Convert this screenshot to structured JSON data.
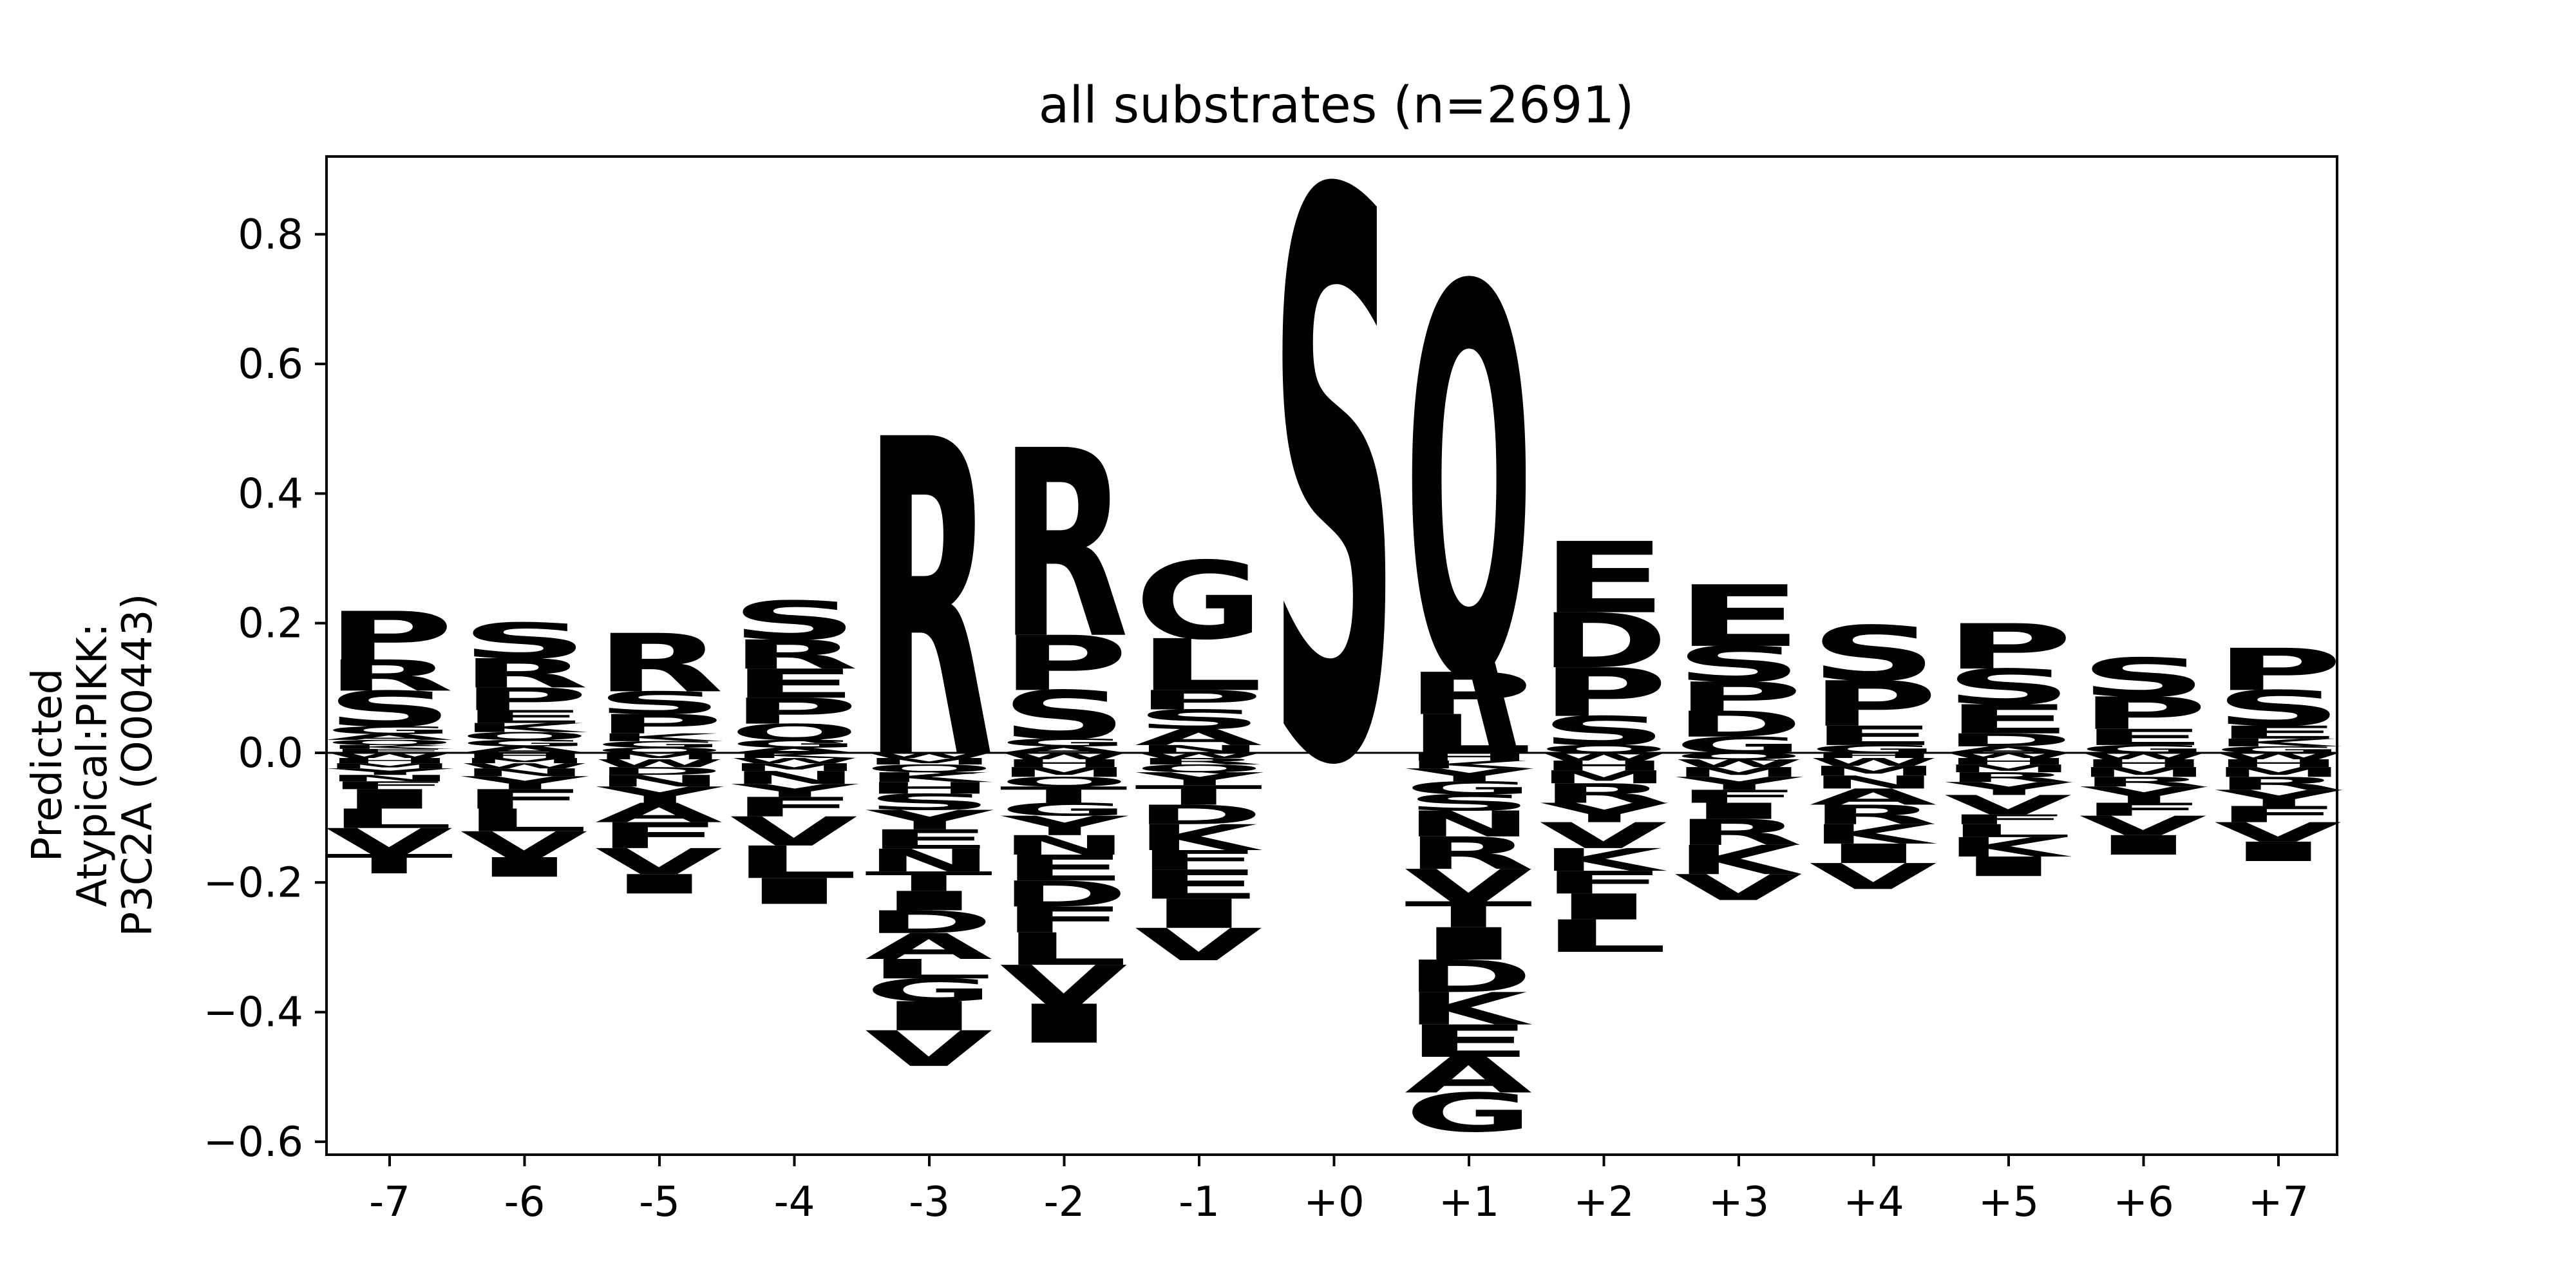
{
  "chart_data": {
    "type": "sequence-logo",
    "title": "all substrates (n=2691)",
    "ylabel_lines": [
      "Predicted",
      "Atypical:PIKK:",
      "P3C2A (O00443)"
    ],
    "ylim": [
      -0.62,
      0.92
    ],
    "yticks": [
      {
        "value": 0.8,
        "label": "0.8"
      },
      {
        "value": 0.6,
        "label": "0.6"
      },
      {
        "value": 0.4,
        "label": "0.4"
      },
      {
        "value": 0.2,
        "label": "0.2"
      },
      {
        "value": 0.0,
        "label": "0.0"
      },
      {
        "value": -0.2,
        "label": "−0.2"
      },
      {
        "value": -0.4,
        "label": "−0.4"
      },
      {
        "value": -0.6,
        "label": "−0.6"
      }
    ],
    "positions": [
      "-7",
      "-6",
      "-5",
      "-4",
      "-3",
      "-2",
      "-1",
      "+0",
      "+1",
      "+2",
      "+3",
      "+4",
      "+5",
      "+6",
      "+7"
    ],
    "colors": {
      "S": "#22d42a",
      "T": "#22d42a",
      "G": "#22d42a",
      "Y": "#22d42a",
      "C": "#22d42a",
      "R": "#0a1fc0",
      "K": "#0a1fc0",
      "H": "#0a1fc0",
      "D": "#d8121c",
      "E": "#d8121c",
      "Q": "#d61fbf",
      "N": "#d61fbf",
      "P": "#000000",
      "L": "#000000",
      "A": "#000000",
      "V": "#000000",
      "I": "#000000",
      "F": "#000000",
      "M": "#000000",
      "W": "#000000"
    },
    "stacks": [
      {
        "pos": "-7",
        "positive": [
          [
            "E",
            0.006
          ],
          [
            "K",
            0.006
          ],
          [
            "Q",
            0.008
          ],
          [
            "A",
            0.009
          ],
          [
            "G",
            0.012
          ],
          [
            "S",
            0.055
          ],
          [
            "R",
            0.048
          ],
          [
            "P",
            0.075
          ]
        ],
        "negative": [
          [
            "W",
            0.008
          ],
          [
            "H",
            0.008
          ],
          [
            "M",
            0.008
          ],
          [
            "Y",
            0.01
          ],
          [
            "N",
            0.01
          ],
          [
            "F",
            0.012
          ],
          [
            "I",
            0.03
          ],
          [
            "L",
            0.03
          ],
          [
            "V",
            0.04
          ],
          [
            "T",
            0.03
          ]
        ]
      },
      {
        "pos": "-6",
        "positive": [
          [
            "A",
            0.01
          ],
          [
            "G",
            0.01
          ],
          [
            "Q",
            0.012
          ],
          [
            "K",
            0.014
          ],
          [
            "E",
            0.02
          ],
          [
            "P",
            0.035
          ],
          [
            "R",
            0.045
          ],
          [
            "S",
            0.055
          ]
        ],
        "negative": [
          [
            "H",
            0.008
          ],
          [
            "M",
            0.008
          ],
          [
            "W",
            0.008
          ],
          [
            "N",
            0.012
          ],
          [
            "Y",
            0.02
          ],
          [
            "F",
            0.03
          ],
          [
            "L",
            0.035
          ],
          [
            "V",
            0.04
          ],
          [
            "I",
            0.03
          ]
        ]
      },
      {
        "pos": "-5",
        "positive": [
          [
            "Q",
            0.008
          ],
          [
            "G",
            0.01
          ],
          [
            "K",
            0.012
          ],
          [
            "P",
            0.03
          ],
          [
            "S",
            0.035
          ],
          [
            "R",
            0.09
          ]
        ],
        "negative": [
          [
            "M",
            0.01
          ],
          [
            "W",
            0.012
          ],
          [
            "D",
            0.012
          ],
          [
            "N",
            0.018
          ],
          [
            "Y",
            0.025
          ],
          [
            "A",
            0.03
          ],
          [
            "F",
            0.04
          ],
          [
            "V",
            0.04
          ],
          [
            "I",
            0.03
          ]
        ]
      },
      {
        "pos": "-4",
        "positive": [
          [
            "A",
            0.008
          ],
          [
            "G",
            0.012
          ],
          [
            "Q",
            0.025
          ],
          [
            "P",
            0.04
          ],
          [
            "E",
            0.045
          ],
          [
            "R",
            0.045
          ],
          [
            "S",
            0.06
          ]
        ],
        "negative": [
          [
            "K",
            0.008
          ],
          [
            "W",
            0.008
          ],
          [
            "M",
            0.012
          ],
          [
            "N",
            0.02
          ],
          [
            "Y",
            0.02
          ],
          [
            "F",
            0.03
          ],
          [
            "V",
            0.045
          ],
          [
            "L",
            0.05
          ],
          [
            "I",
            0.04
          ]
        ]
      },
      {
        "pos": "-3",
        "positive": [
          [
            "R",
            0.49
          ]
        ],
        "negative": [
          [
            "W",
            0.008
          ],
          [
            "M",
            0.01
          ],
          [
            "Q",
            0.012
          ],
          [
            "K",
            0.015
          ],
          [
            "H",
            0.018
          ],
          [
            "S",
            0.025
          ],
          [
            "Y",
            0.03
          ],
          [
            "E",
            0.03
          ],
          [
            "N",
            0.035
          ],
          [
            "T",
            0.03
          ],
          [
            "I",
            0.03
          ],
          [
            "D",
            0.035
          ],
          [
            "A",
            0.04
          ],
          [
            "L",
            0.03
          ],
          [
            "G",
            0.035
          ],
          [
            "I",
            0.045
          ],
          [
            "V",
            0.055
          ]
        ]
      },
      {
        "pos": "-2",
        "positive": [
          [
            "A",
            0.01
          ],
          [
            "G",
            0.012
          ],
          [
            "S",
            0.075
          ],
          [
            "P",
            0.085
          ],
          [
            "R",
            0.29
          ]
        ],
        "negative": [
          [
            "W",
            0.01
          ],
          [
            "H",
            0.012
          ],
          [
            "M",
            0.015
          ],
          [
            "Q",
            0.015
          ],
          [
            "T",
            0.025
          ],
          [
            "G",
            0.02
          ],
          [
            "Y",
            0.03
          ],
          [
            "N",
            0.03
          ],
          [
            "E",
            0.04
          ],
          [
            "D",
            0.04
          ],
          [
            "F",
            0.04
          ],
          [
            "L",
            0.05
          ],
          [
            "V",
            0.06
          ],
          [
            "I",
            0.06
          ]
        ]
      },
      {
        "pos": "-1",
        "positive": [
          [
            "N",
            0.012
          ],
          [
            "A",
            0.025
          ],
          [
            "S",
            0.03
          ],
          [
            "P",
            0.03
          ],
          [
            "L",
            0.08
          ],
          [
            "G",
            0.12
          ]
        ],
        "negative": [
          [
            "W",
            0.008
          ],
          [
            "R",
            0.01
          ],
          [
            "Q",
            0.012
          ],
          [
            "Y",
            0.02
          ],
          [
            "T",
            0.03
          ],
          [
            "D",
            0.03
          ],
          [
            "K",
            0.04
          ],
          [
            "F",
            0.03
          ],
          [
            "E",
            0.045
          ],
          [
            "I",
            0.045
          ],
          [
            "V",
            0.05
          ]
        ]
      },
      {
        "pos": "+0",
        "positive": [
          [
            "S",
            0.87
          ]
        ],
        "negative": []
      },
      {
        "pos": "+1",
        "positive": [
          [
            "L",
            0.06
          ],
          [
            "P",
            0.065
          ],
          [
            "Q",
            0.6
          ]
        ],
        "negative": [
          [
            "H",
            0.012
          ],
          [
            "K",
            0.012
          ],
          [
            "Y",
            0.02
          ],
          [
            "G",
            0.02
          ],
          [
            "S",
            0.025
          ],
          [
            "N",
            0.04
          ],
          [
            "R",
            0.05
          ],
          [
            "V",
            0.05
          ],
          [
            "T",
            0.04
          ],
          [
            "I",
            0.05
          ],
          [
            "D",
            0.05
          ],
          [
            "K",
            0.05
          ],
          [
            "E",
            0.05
          ],
          [
            "A",
            0.055
          ],
          [
            "G",
            0.06
          ]
        ]
      },
      {
        "pos": "+2",
        "positive": [
          [
            "Q",
            0.012
          ],
          [
            "S",
            0.045
          ],
          [
            "P",
            0.075
          ],
          [
            "D",
            0.085
          ],
          [
            "E",
            0.11
          ]
        ],
        "negative": [
          [
            "W",
            0.012
          ],
          [
            "H",
            0.015
          ],
          [
            "M",
            0.02
          ],
          [
            "R",
            0.03
          ],
          [
            "Y",
            0.03
          ],
          [
            "V",
            0.04
          ],
          [
            "K",
            0.035
          ],
          [
            "F",
            0.035
          ],
          [
            "I",
            0.04
          ],
          [
            "L",
            0.05
          ]
        ]
      },
      {
        "pos": "+3",
        "positive": [
          [
            "G",
            0.025
          ],
          [
            "D",
            0.04
          ],
          [
            "P",
            0.045
          ],
          [
            "S",
            0.055
          ],
          [
            "E",
            0.095
          ]
        ],
        "negative": [
          [
            "Q",
            0.01
          ],
          [
            "W",
            0.012
          ],
          [
            "M",
            0.015
          ],
          [
            "Y",
            0.02
          ],
          [
            "F",
            0.02
          ],
          [
            "I",
            0.025
          ],
          [
            "R",
            0.04
          ],
          [
            "K",
            0.045
          ],
          [
            "V",
            0.04
          ]
        ]
      },
      {
        "pos": "+4",
        "positive": [
          [
            "G",
            0.012
          ],
          [
            "E",
            0.03
          ],
          [
            "P",
            0.07
          ],
          [
            "S",
            0.085
          ]
        ],
        "negative": [
          [
            "H",
            0.008
          ],
          [
            "W",
            0.012
          ],
          [
            "M",
            0.015
          ],
          [
            "N",
            0.02
          ],
          [
            "A",
            0.025
          ],
          [
            "R",
            0.03
          ],
          [
            "K",
            0.03
          ],
          [
            "I",
            0.03
          ],
          [
            "V",
            0.04
          ]
        ]
      },
      {
        "pos": "+5",
        "positive": [
          [
            "A",
            0.01
          ],
          [
            "D",
            0.02
          ],
          [
            "E",
            0.045
          ],
          [
            "S",
            0.055
          ],
          [
            "P",
            0.07
          ]
        ],
        "negative": [
          [
            "W",
            0.008
          ],
          [
            "H",
            0.01
          ],
          [
            "M",
            0.012
          ],
          [
            "R",
            0.015
          ],
          [
            "Y",
            0.02
          ],
          [
            "V",
            0.03
          ],
          [
            "F",
            0.015
          ],
          [
            "L",
            0.02
          ],
          [
            "K",
            0.03
          ],
          [
            "I",
            0.03
          ]
        ]
      },
      {
        "pos": "+6",
        "positive": [
          [
            "G",
            0.012
          ],
          [
            "E",
            0.025
          ],
          [
            "P",
            0.05
          ],
          [
            "S",
            0.06
          ]
        ],
        "negative": [
          [
            "W",
            0.01
          ],
          [
            "H",
            0.012
          ],
          [
            "M",
            0.015
          ],
          [
            "R",
            0.015
          ],
          [
            "Y",
            0.025
          ],
          [
            "F",
            0.02
          ],
          [
            "V",
            0.03
          ],
          [
            "I",
            0.03
          ]
        ]
      },
      {
        "pos": "+7",
        "positive": [
          [
            "G",
            0.01
          ],
          [
            "K",
            0.012
          ],
          [
            "E",
            0.02
          ],
          [
            "S",
            0.055
          ],
          [
            "P",
            0.065
          ]
        ],
        "negative": [
          [
            "W",
            0.01
          ],
          [
            "H",
            0.012
          ],
          [
            "M",
            0.015
          ],
          [
            "R",
            0.02
          ],
          [
            "Y",
            0.025
          ],
          [
            "F",
            0.025
          ],
          [
            "V",
            0.03
          ],
          [
            "I",
            0.03
          ]
        ]
      }
    ]
  }
}
